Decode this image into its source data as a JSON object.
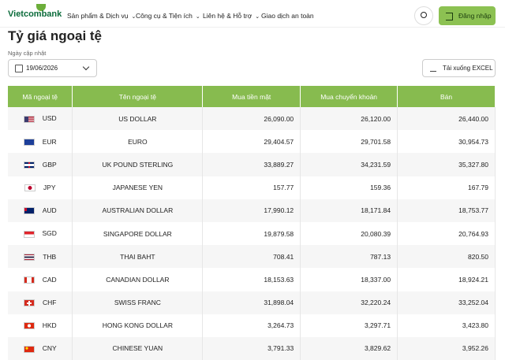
{
  "header": {
    "logo": "Vietcombank",
    "nav": [
      "Sản phẩm & Dịch vụ",
      "Công cụ & Tiện ích",
      "Liên hệ & Hỗ trợ",
      "Giao dịch an toàn"
    ],
    "login": "Đăng nhập"
  },
  "page": {
    "title": "Tỷ giá ngoại tệ",
    "date_label": "Ngày cập nhật",
    "date": "19/06/2026",
    "download": "Tải xuống EXCEL"
  },
  "table": {
    "columns": [
      "Mã ngoại tệ",
      "Tên ngoại tệ",
      "Mua tiền mặt",
      "Mua chuyển khoản",
      "Bán"
    ],
    "rows": [
      [
        "USD",
        "US DOLLAR",
        "26,090.00",
        "26,120.00",
        "26,440.00"
      ],
      [
        "EUR",
        "EURO",
        "29,404.57",
        "29,701.58",
        "30,954.73"
      ],
      [
        "GBP",
        "UK POUND STERLING",
        "33,889.27",
        "34,231.59",
        "35,327.80"
      ],
      [
        "JPY",
        "JAPANESE YEN",
        "157.77",
        "159.36",
        "167.79"
      ],
      [
        "AUD",
        "AUSTRALIAN DOLLAR",
        "17,990.12",
        "18,171.84",
        "18,753.77"
      ],
      [
        "SGD",
        "SINGAPORE DOLLAR",
        "19,879.58",
        "20,080.39",
        "20,764.93"
      ],
      [
        "THB",
        "THAI BAHT",
        "708.41",
        "787.13",
        "820.50"
      ],
      [
        "CAD",
        "CANADIAN DOLLAR",
        "18,153.63",
        "18,337.00",
        "18,924.21"
      ],
      [
        "CHF",
        "SWISS FRANC",
        "31,898.04",
        "32,220.24",
        "33,252.04"
      ],
      [
        "HKD",
        "HONG KONG DOLLAR",
        "3,264.73",
        "3,297.71",
        "3,423.80"
      ],
      [
        "CNY",
        "CHINESE YUAN",
        "3,791.33",
        "3,829.62",
        "3,952.26"
      ]
    ]
  }
}
